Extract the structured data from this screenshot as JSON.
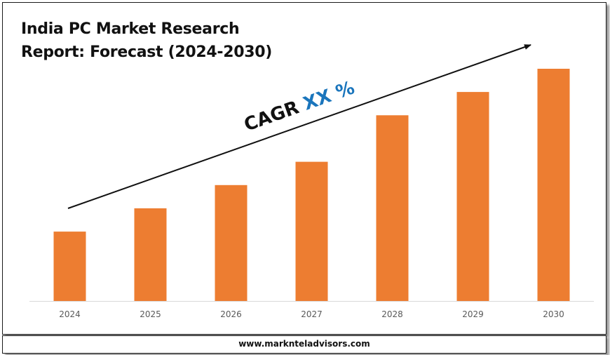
{
  "chart_data": {
    "type": "bar",
    "title": [
      "India PC Market Research",
      "Report: Forecast (2024-2030)"
    ],
    "categories": [
      "2024",
      "2025",
      "2026",
      "2027",
      "2028",
      "2029",
      "2030"
    ],
    "values": [
      30,
      40,
      50,
      60,
      80,
      90,
      100
    ],
    "value_note": "relative heights, no axis scale printed",
    "ylim": [
      0,
      100
    ],
    "grid": false,
    "legend": "none",
    "bar_color": "#ed7d31",
    "annotation": {
      "prefix": "CAGR ",
      "highlight": "XX %",
      "prefix_color": "#111111",
      "highlight_color": "#1a75bc"
    }
  },
  "footer": {
    "url": "www.marknteladvisors.com"
  }
}
